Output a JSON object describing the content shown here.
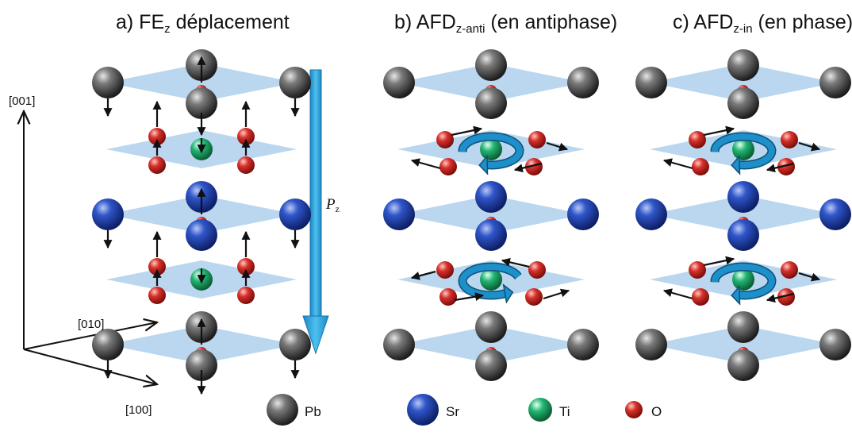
{
  "panels": [
    {
      "prefix": "a) FE",
      "sub": "z",
      "suffix": " déplacement"
    },
    {
      "prefix": "b) AFD",
      "sub": "z-anti",
      "suffix": " (en antiphase)"
    },
    {
      "prefix": "c) AFD",
      "sub": "z-in",
      "suffix": " (en phase)"
    }
  ],
  "axes": {
    "z": "[001]",
    "y": "[010]",
    "x": "[100]"
  },
  "polarization": {
    "symbol": "P",
    "sub": "z"
  },
  "legend": [
    {
      "label": "Pb",
      "color": "#3a3a3a"
    },
    {
      "label": "Sr",
      "color": "#1c3fa8"
    },
    {
      "label": "Ti",
      "color": "#16a866"
    },
    {
      "label": "O",
      "color": "#d42a25"
    }
  ],
  "colors": {
    "plane": "#aed0ec",
    "arrow": "#2a9fd8",
    "rotation_arrow": "#1d8fc9"
  }
}
